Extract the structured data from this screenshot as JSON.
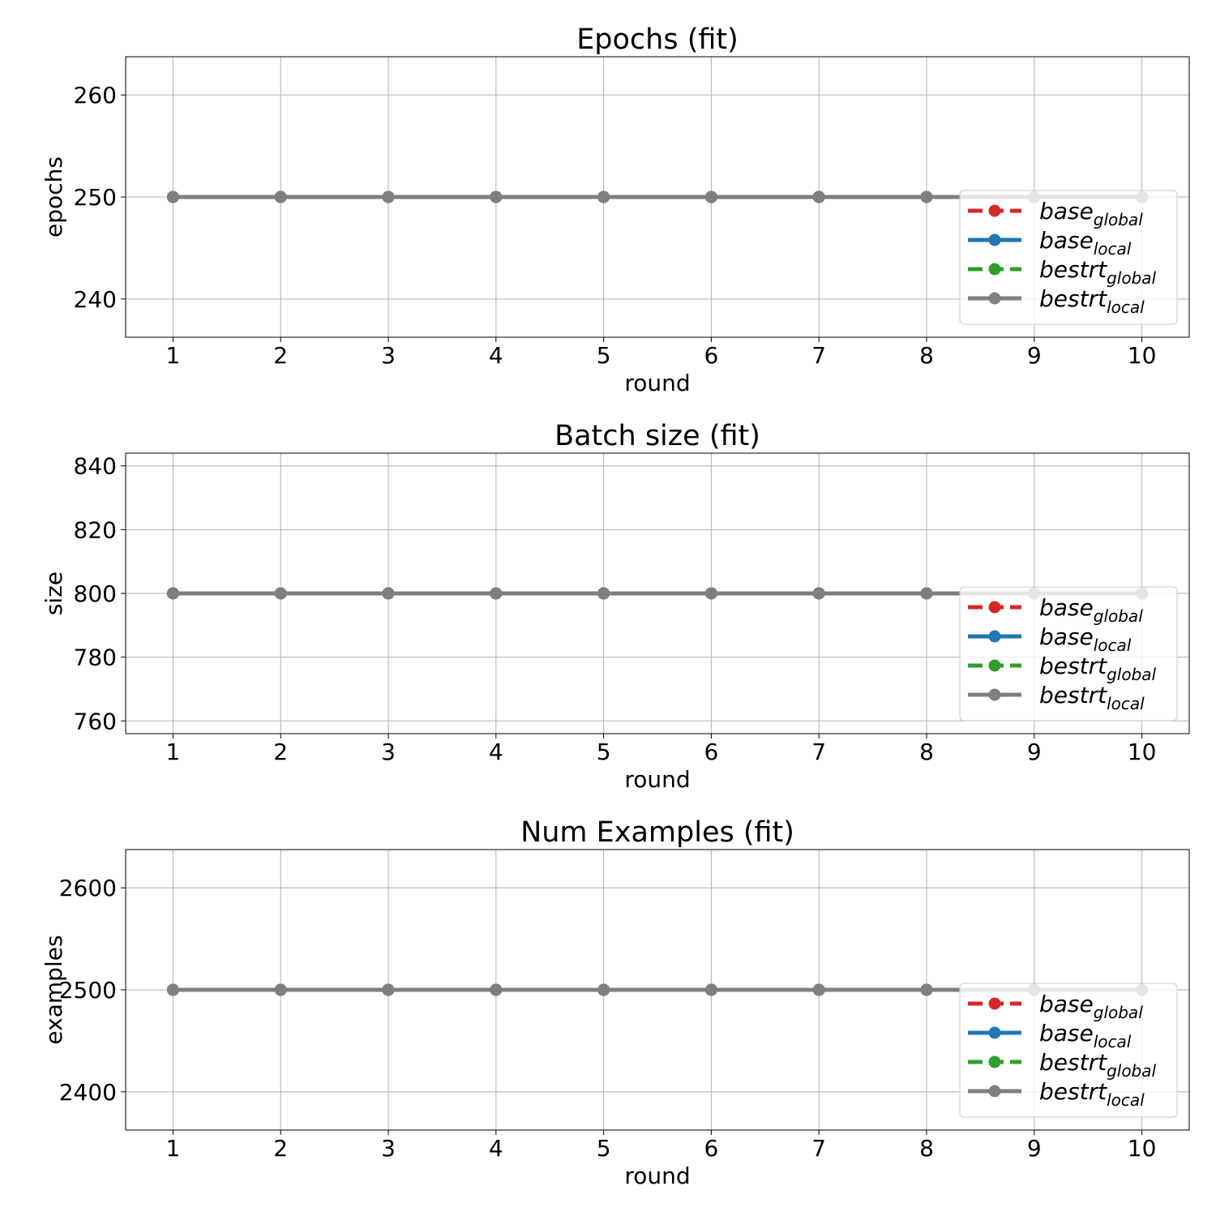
{
  "chart_data": [
    {
      "type": "line",
      "title": "Epochs (fit)",
      "xlabel": "round",
      "ylabel": "epochs",
      "x": [
        1,
        2,
        3,
        4,
        5,
        6,
        7,
        8,
        9,
        10
      ],
      "xlim": [
        0.56,
        10.44
      ],
      "ylim": [
        236.25,
        263.75
      ],
      "yticks": [
        240,
        250,
        260
      ],
      "grid": true,
      "legend_position": "lower-right",
      "series": [
        {
          "name": "base",
          "sub": "global",
          "color": "#d62728",
          "dashed": true,
          "values": [
            250,
            250,
            250,
            250,
            250,
            250,
            250,
            250,
            250,
            250
          ]
        },
        {
          "name": "base",
          "sub": "local",
          "color": "#1f77b4",
          "dashed": false,
          "values": [
            250,
            250,
            250,
            250,
            250,
            250,
            250,
            250,
            250,
            250
          ]
        },
        {
          "name": "bestrt",
          "sub": "global",
          "color": "#2ca02c",
          "dashed": true,
          "values": [
            250,
            250,
            250,
            250,
            250,
            250,
            250,
            250,
            250,
            250
          ]
        },
        {
          "name": "bestrt",
          "sub": "local",
          "color": "#7f7f7f",
          "dashed": false,
          "values": [
            250,
            250,
            250,
            250,
            250,
            250,
            250,
            250,
            250,
            250
          ]
        }
      ]
    },
    {
      "type": "line",
      "title": "Batch size (fit)",
      "xlabel": "round",
      "ylabel": "size",
      "x": [
        1,
        2,
        3,
        4,
        5,
        6,
        7,
        8,
        9,
        10
      ],
      "xlim": [
        0.56,
        10.44
      ],
      "ylim": [
        756,
        844
      ],
      "yticks": [
        760,
        780,
        800,
        820,
        840
      ],
      "grid": true,
      "legend_position": "lower-right",
      "series": [
        {
          "name": "base",
          "sub": "global",
          "color": "#d62728",
          "dashed": true,
          "values": [
            800,
            800,
            800,
            800,
            800,
            800,
            800,
            800,
            800,
            800
          ]
        },
        {
          "name": "base",
          "sub": "local",
          "color": "#1f77b4",
          "dashed": false,
          "values": [
            800,
            800,
            800,
            800,
            800,
            800,
            800,
            800,
            800,
            800
          ]
        },
        {
          "name": "bestrt",
          "sub": "global",
          "color": "#2ca02c",
          "dashed": true,
          "values": [
            800,
            800,
            800,
            800,
            800,
            800,
            800,
            800,
            800,
            800
          ]
        },
        {
          "name": "bestrt",
          "sub": "local",
          "color": "#7f7f7f",
          "dashed": false,
          "values": [
            800,
            800,
            800,
            800,
            800,
            800,
            800,
            800,
            800,
            800
          ]
        }
      ]
    },
    {
      "type": "line",
      "title": "Num Examples (fit)",
      "xlabel": "round",
      "ylabel": "examples",
      "x": [
        1,
        2,
        3,
        4,
        5,
        6,
        7,
        8,
        9,
        10
      ],
      "xlim": [
        0.56,
        10.44
      ],
      "ylim": [
        2362.5,
        2637.5
      ],
      "yticks": [
        2400,
        2500,
        2600
      ],
      "grid": true,
      "legend_position": "lower-right",
      "series": [
        {
          "name": "base",
          "sub": "global",
          "color": "#d62728",
          "dashed": true,
          "values": [
            2500,
            2500,
            2500,
            2500,
            2500,
            2500,
            2500,
            2500,
            2500,
            2500
          ]
        },
        {
          "name": "base",
          "sub": "local",
          "color": "#1f77b4",
          "dashed": false,
          "values": [
            2500,
            2500,
            2500,
            2500,
            2500,
            2500,
            2500,
            2500,
            2500,
            2500
          ]
        },
        {
          "name": "bestrt",
          "sub": "global",
          "color": "#2ca02c",
          "dashed": true,
          "values": [
            2500,
            2500,
            2500,
            2500,
            2500,
            2500,
            2500,
            2500,
            2500,
            2500
          ]
        },
        {
          "name": "bestrt",
          "sub": "local",
          "color": "#7f7f7f",
          "dashed": false,
          "values": [
            2500,
            2500,
            2500,
            2500,
            2500,
            2500,
            2500,
            2500,
            2500,
            2500
          ]
        }
      ]
    }
  ]
}
